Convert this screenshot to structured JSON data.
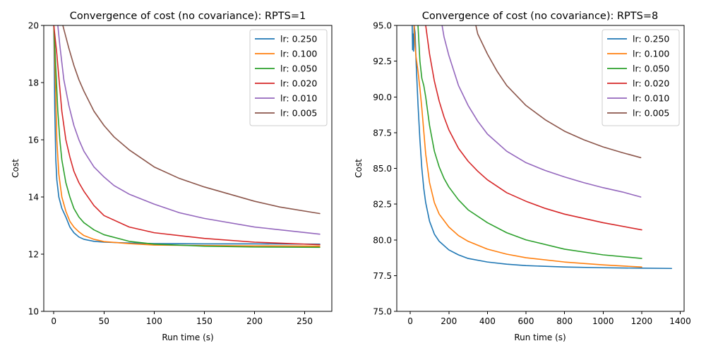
{
  "chart_data": [
    {
      "type": "line",
      "title": "Convergence of cost (no covariance): RPTS=1",
      "xlabel": "Run time (s)",
      "ylabel": "Cost",
      "xlim": [
        -10,
        277
      ],
      "ylim": [
        10,
        20
      ],
      "xticks": [
        0,
        50,
        100,
        150,
        200,
        250
      ],
      "yticks": [
        10,
        12,
        14,
        16,
        18,
        20
      ],
      "xtick_labels": [
        "0",
        "50",
        "100",
        "150",
        "200",
        "250"
      ],
      "ytick_labels": [
        "10",
        "12",
        "14",
        "16",
        "18",
        "20"
      ],
      "legend_position": "top-right",
      "series": [
        {
          "name": "lr: 0.250",
          "color": "#1f77b4",
          "x": [
            0,
            1,
            2,
            3,
            5,
            8,
            12,
            16,
            20,
            25,
            30,
            40,
            50,
            75,
            100,
            150,
            200,
            265
          ],
          "y": [
            20,
            17,
            15.3,
            14.6,
            14.0,
            13.6,
            13.3,
            12.95,
            12.75,
            12.6,
            12.52,
            12.45,
            12.42,
            12.39,
            12.37,
            12.36,
            12.36,
            12.35
          ]
        },
        {
          "name": "lr: 0.100",
          "color": "#ff7f0e",
          "x": [
            0,
            2,
            3,
            5,
            8,
            12,
            16,
            20,
            25,
            30,
            40,
            50,
            75,
            100,
            150,
            200,
            265
          ],
          "y": [
            20,
            17.5,
            16.0,
            14.8,
            14.0,
            13.5,
            13.15,
            12.95,
            12.78,
            12.65,
            12.52,
            12.44,
            12.37,
            12.32,
            12.3,
            12.29,
            12.28
          ]
        },
        {
          "name": "lr: 0.050",
          "color": "#2ca02c",
          "x": [
            0,
            2,
            4,
            6,
            8,
            12,
            16,
            20,
            25,
            30,
            40,
            50,
            75,
            100,
            150,
            200,
            265
          ],
          "y": [
            20,
            18.5,
            17.0,
            16.0,
            15.3,
            14.5,
            14.0,
            13.6,
            13.3,
            13.1,
            12.85,
            12.68,
            12.45,
            12.35,
            12.28,
            12.25,
            12.24
          ]
        },
        {
          "name": "lr: 0.020",
          "color": "#d62728",
          "x": [
            0,
            3,
            5,
            8,
            12,
            16,
            20,
            25,
            30,
            40,
            50,
            75,
            100,
            150,
            200,
            265
          ],
          "y": [
            20,
            19.0,
            18.2,
            17.0,
            16.0,
            15.4,
            14.9,
            14.5,
            14.2,
            13.7,
            13.35,
            12.95,
            12.75,
            12.55,
            12.42,
            12.33
          ]
        },
        {
          "name": "lr: 0.010",
          "color": "#9467bd",
          "x": [
            4,
            6,
            8,
            10,
            15,
            20,
            25,
            30,
            40,
            50,
            60,
            75,
            100,
            125,
            150,
            200,
            265
          ],
          "y": [
            20,
            19.3,
            18.7,
            18.1,
            17.2,
            16.5,
            16.0,
            15.6,
            15.05,
            14.7,
            14.4,
            14.1,
            13.75,
            13.45,
            13.25,
            12.95,
            12.7
          ]
        },
        {
          "name": "lr: 0.005",
          "color": "#8c564b",
          "x": [
            9,
            12,
            15,
            20,
            25,
            30,
            40,
            50,
            60,
            75,
            100,
            125,
            150,
            175,
            200,
            225,
            265
          ],
          "y": [
            20,
            19.6,
            19.2,
            18.6,
            18.1,
            17.7,
            17.0,
            16.5,
            16.1,
            15.65,
            15.05,
            14.65,
            14.35,
            14.1,
            13.85,
            13.65,
            13.42
          ]
        }
      ]
    },
    {
      "type": "line",
      "title": "Convergence of cost (no covariance): RPTS=8",
      "xlabel": "Run time (s)",
      "ylabel": "Cost",
      "xlim": [
        -70,
        1420
      ],
      "ylim": [
        75,
        95
      ],
      "xticks": [
        0,
        200,
        400,
        600,
        800,
        1000,
        1200,
        1400
      ],
      "yticks": [
        75,
        77.5,
        80,
        82.5,
        85,
        87.5,
        90,
        92.5,
        95
      ],
      "xtick_labels": [
        "0",
        "200",
        "400",
        "600",
        "800",
        "1000",
        "1200",
        "1400"
      ],
      "ytick_labels": [
        "75.0",
        "77.5",
        "80.0",
        "82.5",
        "85.0",
        "87.5",
        "90.0",
        "92.5",
        "95.0"
      ],
      "legend_position": "top-right",
      "series": [
        {
          "name": "lr: 0.250",
          "color": "#1f77b4",
          "x": [
            10,
            12,
            15,
            17,
            20,
            25,
            30,
            35,
            40,
            50,
            60,
            70,
            80,
            100,
            125,
            150,
            200,
            250,
            300,
            400,
            500,
            600,
            800,
            1000,
            1200,
            1355
          ],
          "y": [
            95,
            93.3,
            94.4,
            93.2,
            95,
            94.5,
            92.5,
            91.0,
            89.5,
            87.0,
            85.0,
            83.6,
            82.6,
            81.3,
            80.4,
            79.9,
            79.3,
            78.95,
            78.7,
            78.45,
            78.3,
            78.2,
            78.1,
            78.05,
            78.02,
            78.0
          ]
        },
        {
          "name": "lr: 0.100",
          "color": "#ff7f0e",
          "x": [
            20,
            25,
            30,
            40,
            50,
            60,
            80,
            100,
            125,
            150,
            200,
            250,
            300,
            400,
            500,
            600,
            800,
            1000,
            1200
          ],
          "y": [
            95,
            93.5,
            92.8,
            91.8,
            90.6,
            89.2,
            86.0,
            84.0,
            82.6,
            81.8,
            80.9,
            80.3,
            79.9,
            79.35,
            79.0,
            78.75,
            78.45,
            78.25,
            78.1
          ]
        },
        {
          "name": "lr: 0.050",
          "color": "#2ca02c",
          "x": [
            40,
            50,
            60,
            70,
            80,
            100,
            125,
            150,
            175,
            200,
            250,
            300,
            400,
            500,
            600,
            800,
            1000,
            1200
          ],
          "y": [
            95,
            92.5,
            91.3,
            90.8,
            90.0,
            88.0,
            86.2,
            85.1,
            84.3,
            83.7,
            82.8,
            82.1,
            81.2,
            80.5,
            80.0,
            79.35,
            78.95,
            78.7
          ]
        },
        {
          "name": "lr: 0.020",
          "color": "#d62728",
          "x": [
            80,
            100,
            125,
            150,
            175,
            200,
            250,
            300,
            350,
            400,
            500,
            600,
            700,
            800,
            1000,
            1200
          ],
          "y": [
            95,
            93.0,
            91.1,
            89.7,
            88.6,
            87.7,
            86.4,
            85.5,
            84.8,
            84.2,
            83.3,
            82.7,
            82.2,
            81.8,
            81.2,
            80.7
          ]
        },
        {
          "name": "lr: 0.010",
          "color": "#9467bd",
          "x": [
            165,
            175,
            200,
            250,
            300,
            350,
            400,
            500,
            600,
            700,
            800,
            900,
            1000,
            1100,
            1195
          ],
          "y": [
            95,
            94.2,
            92.9,
            90.8,
            89.4,
            88.3,
            87.4,
            86.2,
            85.4,
            84.85,
            84.4,
            84.0,
            83.65,
            83.35,
            83.0
          ]
        },
        {
          "name": "lr: 0.005",
          "color": "#8c564b",
          "x": [
            340,
            350,
            400,
            450,
            500,
            600,
            700,
            800,
            900,
            1000,
            1100,
            1195
          ],
          "y": [
            95,
            94.4,
            93.0,
            91.8,
            90.8,
            89.4,
            88.4,
            87.6,
            87.0,
            86.5,
            86.1,
            85.75
          ]
        }
      ]
    }
  ]
}
